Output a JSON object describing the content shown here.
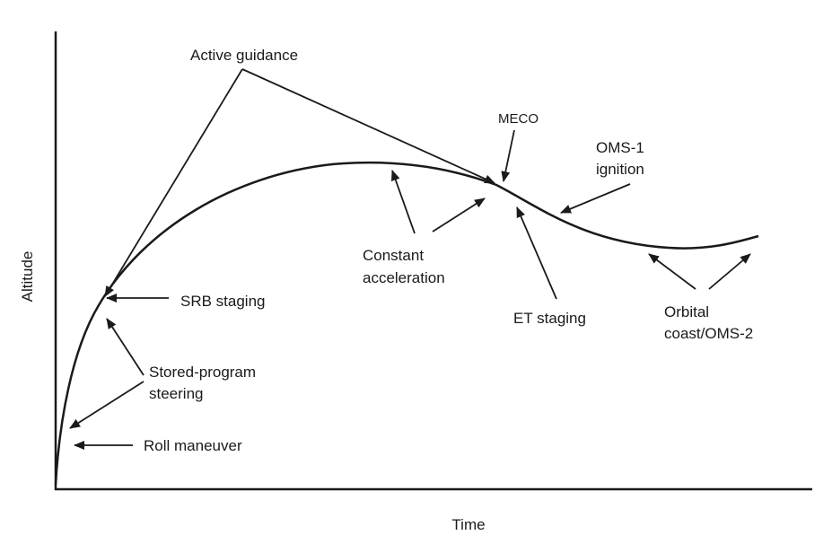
{
  "axes": {
    "x_label": "Time",
    "y_label": "Altitude"
  },
  "labels": {
    "active_guidance": "Active guidance",
    "meco": "MECO",
    "oms1_line1": "OMS-1",
    "oms1_line2": "ignition",
    "constant_accel_line1": "Constant",
    "constant_accel_line2": "acceleration",
    "et_staging": "ET staging",
    "orbital_line1": "Orbital",
    "orbital_line2": "coast/OMS-2",
    "srb_staging": "SRB staging",
    "stored_program_line1": "Stored-program",
    "stored_program_line2": "steering",
    "roll_maneuver": "Roll maneuver"
  }
}
